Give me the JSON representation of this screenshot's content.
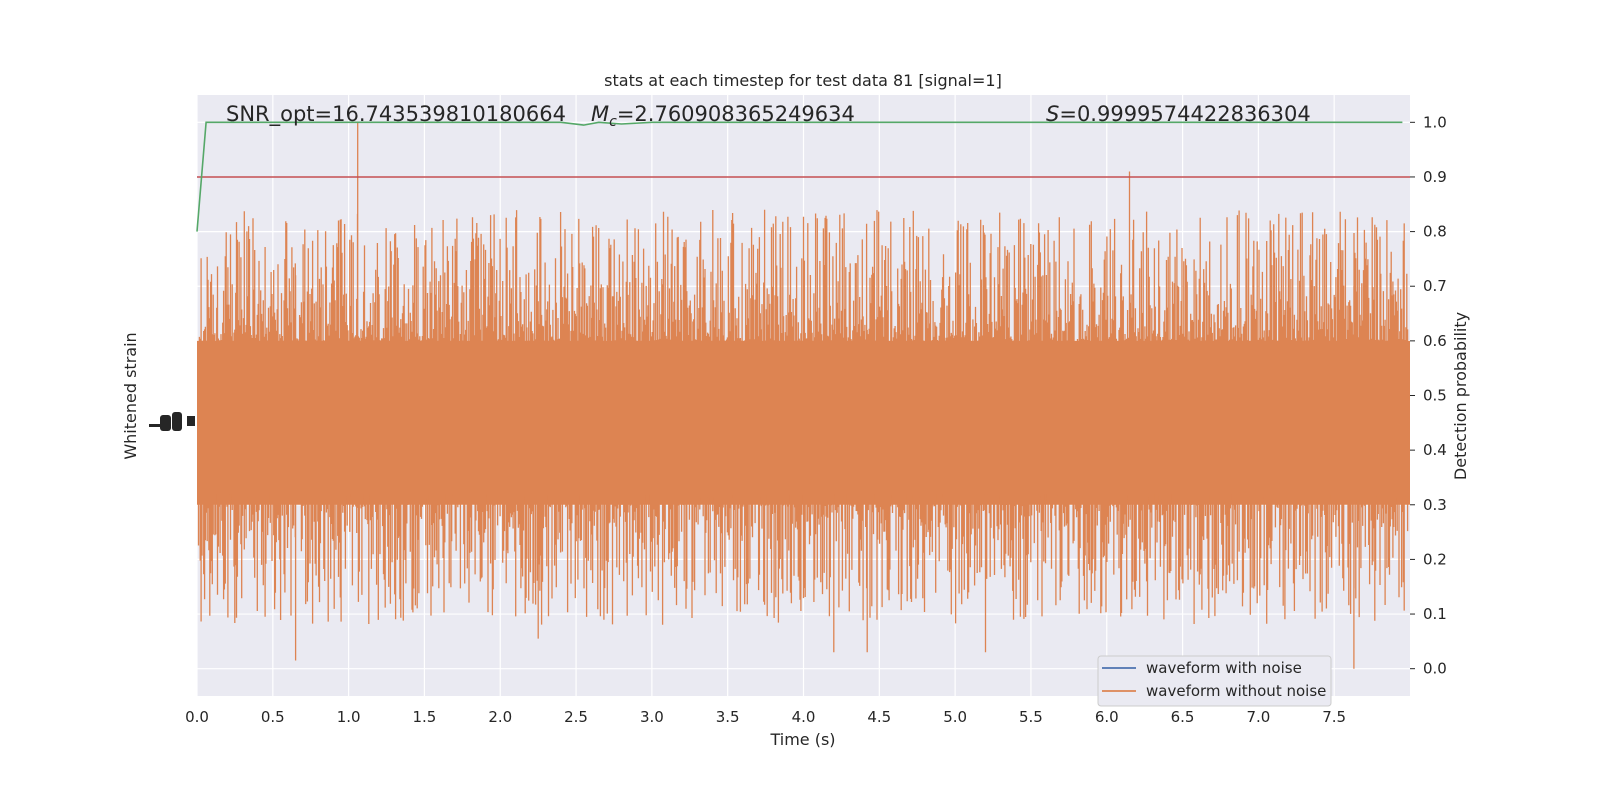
{
  "chart_data": {
    "type": "line",
    "title": "stats at each timestep for test data 81 [signal=1]",
    "xlabel": "Time (s)",
    "ylabel_left": "Whitened strain",
    "ylabel_right": "Detection probability",
    "xlim": [
      0.0,
      8.0
    ],
    "ylim_right": [
      -0.05,
      1.05
    ],
    "x_ticks": [
      "0.0",
      "0.5",
      "1.0",
      "1.5",
      "2.0",
      "2.5",
      "3.0",
      "3.5",
      "4.0",
      "4.5",
      "5.0",
      "5.5",
      "6.0",
      "6.5",
      "7.0",
      "7.5"
    ],
    "y_ticks_right": [
      "0.0",
      "0.1",
      "0.2",
      "0.3",
      "0.4",
      "0.5",
      "0.6",
      "0.7",
      "0.8",
      "0.9",
      "1.0"
    ],
    "grid": true,
    "legend_placement": "lower-right",
    "annotations": {
      "snr": "SNR_opt=16.743539810180664",
      "mc_symbol": "M",
      "mc_sub": "c",
      "mc_value": "=2.760908365249634",
      "s_symbol": "S",
      "s_value": "=0.9999574422836304"
    },
    "series": [
      {
        "name": "waveform with noise",
        "color": "#4c72b0"
      },
      {
        "name": "waveform without noise",
        "color": "#dd8452",
        "band_center": 0.455,
        "band_low": 0.3,
        "band_high": 0.65,
        "peak_max": 1.0,
        "peak_min": 0.0
      },
      {
        "color": "#55a868",
        "x": [
          0.0,
          0.06,
          1.0,
          2.4,
          2.55,
          2.65,
          2.8,
          3.0,
          7.95
        ],
        "y": [
          0.8,
          1.0,
          1.0,
          1.0,
          0.995,
          1.0,
          0.997,
          1.0,
          1.0
        ]
      },
      {
        "color": "#c44e52",
        "threshold": 0.9
      }
    ],
    "colors": {
      "plot_bg": "#eaeaf2",
      "grid": "#ffffff",
      "text": "#262626"
    }
  }
}
